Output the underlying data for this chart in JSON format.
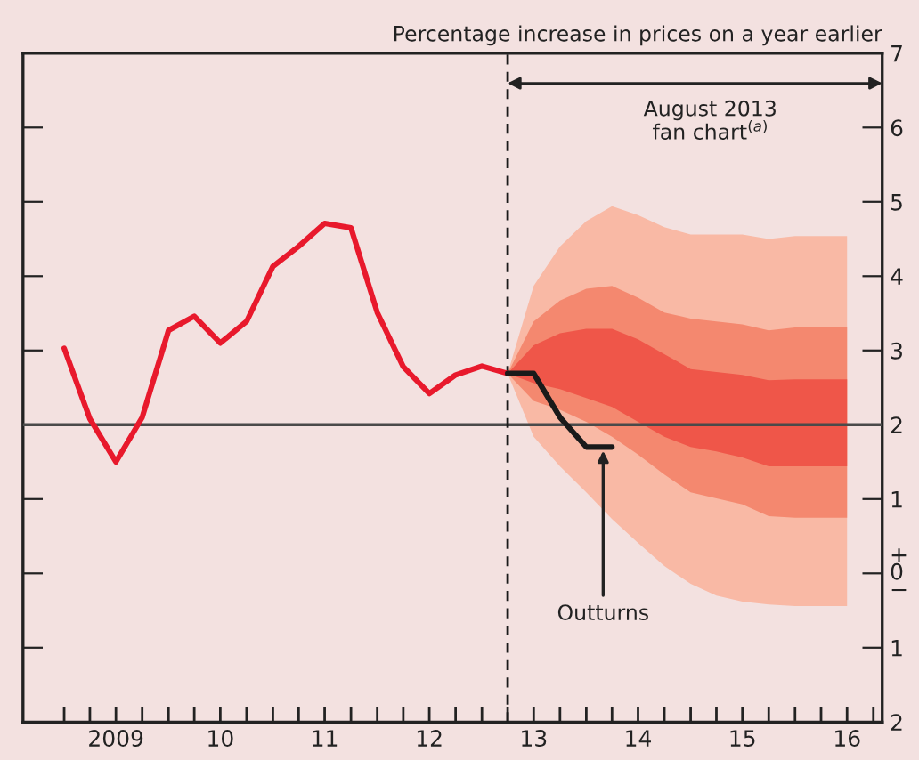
{
  "chart_data": {
    "type": "line",
    "ylabel": "Percentage increase in prices on a year earlier",
    "xlim": [
      "2008-08-10",
      "2016-11-01"
    ],
    "ylim": [
      -2,
      7
    ],
    "xticks": [
      {
        "value": "2009-01",
        "label": null
      },
      {
        "value": "2009-04",
        "label": null
      },
      {
        "value": "2009-07",
        "label": "2009"
      },
      {
        "value": "2009-10",
        "label": null
      },
      {
        "value": "2010-01",
        "label": null
      },
      {
        "value": "2010-04",
        "label": null
      },
      {
        "value": "2010-07",
        "label": "10"
      },
      {
        "value": "2010-10",
        "label": null
      },
      {
        "value": "2011-01",
        "label": null
      },
      {
        "value": "2011-04",
        "label": null
      },
      {
        "value": "2011-07",
        "label": "11"
      },
      {
        "value": "2011-10",
        "label": null
      },
      {
        "value": "2012-01",
        "label": null
      },
      {
        "value": "2012-04",
        "label": null
      },
      {
        "value": "2012-07",
        "label": "12"
      },
      {
        "value": "2012-10",
        "label": null
      },
      {
        "value": "2013-01",
        "label": null
      },
      {
        "value": "2013-04",
        "label": null
      },
      {
        "value": "2013-07",
        "label": "13"
      },
      {
        "value": "2013-10",
        "label": null
      },
      {
        "value": "2014-01",
        "label": null
      },
      {
        "value": "2014-04",
        "label": null
      },
      {
        "value": "2014-07",
        "label": "14"
      },
      {
        "value": "2014-10",
        "label": null
      },
      {
        "value": "2015-01",
        "label": null
      },
      {
        "value": "2015-04",
        "label": null
      },
      {
        "value": "2015-07",
        "label": "15"
      },
      {
        "value": "2015-10",
        "label": null
      },
      {
        "value": "2016-01",
        "label": null
      },
      {
        "value": "2016-04",
        "label": null
      },
      {
        "value": "2016-07",
        "label": "16"
      },
      {
        "value": "2016-10",
        "label": null
      }
    ],
    "yticks": [
      7,
      6,
      5,
      4,
      3,
      2,
      1,
      {
        "value": 0,
        "label": "+\n0\n−"
      },
      {
        "value": -1,
        "label": "1"
      },
      {
        "value": -2,
        "label": "2"
      }
    ],
    "series": [
      {
        "type": "line",
        "color": "#f9b9a5",
        "x": [
          "2013-04",
          "2013-07",
          "2013-10",
          "2014-01",
          "2014-04",
          "2014-07",
          "2014-10",
          "2015-01",
          "2015-04",
          "2015-07",
          "2015-10",
          "2016-01",
          "2016-04",
          "2016-07"
        ],
        "values": [
          null,
          null,
          null,
          null,
          null,
          null,
          null,
          null,
          null,
          null,
          null,
          null,
          null,
          null
        ],
        "upper": [
          2.69,
          3.87,
          4.4,
          4.74,
          4.94,
          4.82,
          4.66,
          4.56,
          4.56,
          4.56,
          4.5,
          4.54,
          4.54,
          4.54
        ],
        "lower": [
          2.69,
          1.84,
          1.44,
          1.09,
          0.73,
          0.41,
          0.1,
          -0.14,
          -0.3,
          -0.38,
          -0.42,
          -0.44,
          -0.44,
          -0.44
        ]
      },
      {
        "type": "line",
        "color": "#f4886f",
        "x": [
          "2013-04",
          "2013-07",
          "2013-10",
          "2014-01",
          "2014-04",
          "2014-07",
          "2014-10",
          "2015-01",
          "2015-04",
          "2015-07",
          "2015-10",
          "2016-01",
          "2016-04",
          "2016-07"
        ],
        "values": [
          null,
          null,
          null,
          null,
          null,
          null,
          null,
          null,
          null,
          null,
          null,
          null,
          null,
          null
        ],
        "upper": [
          2.69,
          3.39,
          3.67,
          3.83,
          3.87,
          3.71,
          3.51,
          3.43,
          3.39,
          3.35,
          3.27,
          3.31,
          3.31,
          3.31
        ],
        "lower": [
          2.69,
          2.32,
          2.2,
          2.04,
          1.84,
          1.6,
          1.33,
          1.09,
          1.01,
          0.93,
          0.77,
          0.75,
          0.75,
          0.75
        ]
      },
      {
        "type": "line",
        "color": "#ef5649",
        "x": [
          "2013-04",
          "2013-07",
          "2013-10",
          "2014-01",
          "2014-04",
          "2014-07",
          "2014-10",
          "2015-01",
          "2015-04",
          "2015-07",
          "2015-10",
          "2016-01",
          "2016-04",
          "2016-07"
        ],
        "values": [
          null,
          null,
          null,
          null,
          null,
          null,
          null,
          null,
          null,
          null,
          null,
          null,
          null,
          null
        ],
        "upper": [
          2.69,
          3.07,
          3.23,
          3.29,
          3.29,
          3.15,
          2.95,
          2.75,
          2.71,
          2.67,
          2.6,
          2.61,
          2.61,
          2.61
        ],
        "lower": [
          2.69,
          2.56,
          2.48,
          2.36,
          2.24,
          2.04,
          1.84,
          1.7,
          1.64,
          1.56,
          1.44,
          1.44,
          1.44,
          1.44
        ]
      },
      {
        "color": "#e8192c",
        "x": [
          "2009-01",
          "2009-04",
          "2009-07",
          "2009-10",
          "2010-01",
          "2010-04",
          "2010-07",
          "2010-10",
          "2011-01",
          "2011-04",
          "2011-07",
          "2011-10",
          "2012-01",
          "2012-04",
          "2012-07",
          "2012-10",
          "2013-01",
          "2013-04"
        ],
        "values": [
          3.03,
          2.08,
          1.5,
          2.1,
          3.27,
          3.46,
          3.1,
          3.39,
          4.13,
          4.4,
          4.71,
          4.65,
          3.51,
          2.78,
          2.42,
          2.67,
          2.79,
          2.69
        ]
      },
      {
        "color": "#1a1a1a",
        "x": [
          "2013-04",
          "2013-07",
          "2013-10",
          "2014-01",
          "2014-04"
        ],
        "values": [
          2.69,
          2.69,
          2.1,
          1.7,
          1.7
        ]
      }
    ],
    "ref_lines": [
      {
        "axis": "y",
        "value": 2,
        "color": "#4a4a4a",
        "line_style": "solid"
      },
      {
        "axis": "x",
        "value": "2013-04",
        "color": "#1a1a1a",
        "line_style": "dashed"
      }
    ],
    "annotations": [
      "August 2013\nfan chart$^{(a)}$",
      {
        "text": "Outturns",
        "x": "2014-03",
        "y": 1.65
      }
    ],
    "grid": false,
    "legend": false,
    "line_style": "solid",
    "marker": "none"
  }
}
